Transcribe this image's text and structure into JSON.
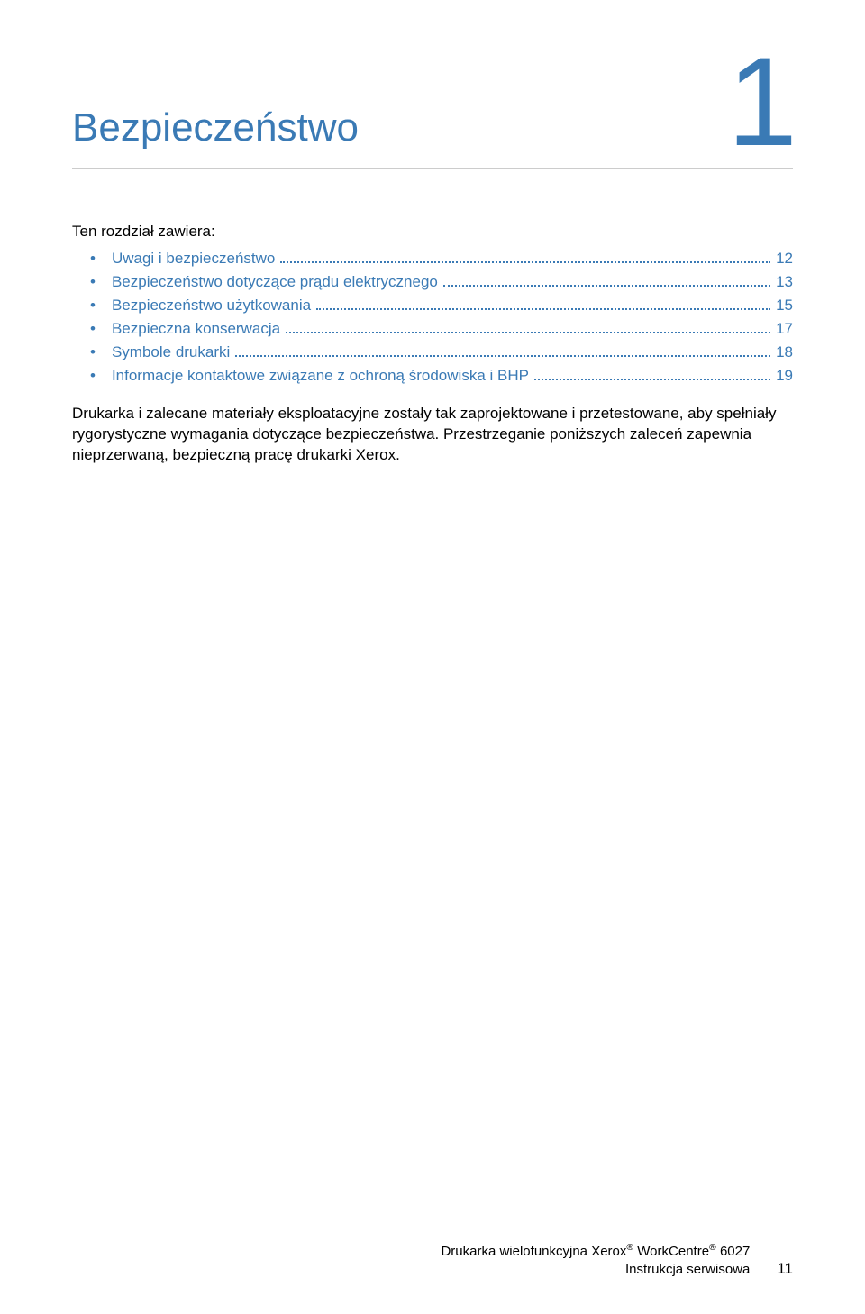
{
  "colors": {
    "accent": "#3a7ab5",
    "text": "#000000",
    "rule": "#cccccc",
    "background": "#ffffff"
  },
  "typography": {
    "chapter_title_fontsize": 44,
    "chapter_number_fontsize": 140,
    "body_fontsize": 17,
    "footer_fontsize": 15
  },
  "chapter": {
    "title": "Bezpieczeństwo",
    "number": "1"
  },
  "intro": "Ten rozdział zawiera:",
  "toc": [
    {
      "label": "Uwagi i bezpieczeństwo",
      "page": "12"
    },
    {
      "label": "Bezpieczeństwo dotyczące prądu elektrycznego",
      "page": "13"
    },
    {
      "label": "Bezpieczeństwo użytkowania",
      "page": "15"
    },
    {
      "label": "Bezpieczna konserwacja",
      "page": "17"
    },
    {
      "label": "Symbole drukarki",
      "page": "18"
    },
    {
      "label": "Informacje kontaktowe związane z ochroną środowiska i BHP",
      "page": "19"
    }
  ],
  "body": "Drukarka i zalecane materiały eksploatacyjne zostały tak zaprojektowane i przetestowane, aby spełniały rygorystyczne wymagania dotyczące bezpieczeństwa. Przestrzeganie poniższych zaleceń zapewnia nieprzerwaną, bezpieczną pracę drukarki Xerox.",
  "footer": {
    "line1_prefix": "Drukarka wielofunkcyjna Xerox",
    "line1_mid": " WorkCentre",
    "line1_suffix": " 6027",
    "line2": "Instrukcja serwisowa",
    "page_number": "11"
  }
}
